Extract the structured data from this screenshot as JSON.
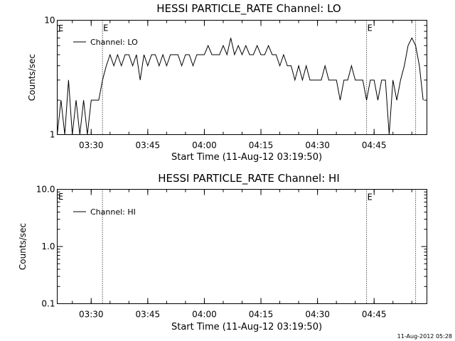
{
  "chart_data": [
    {
      "type": "line",
      "title": "HESSI PARTICLE_RATE Channel: LO",
      "xlabel": "Start Time (11-Aug-12 03:19:50)",
      "ylabel": "Counts/sec",
      "yscale": "log",
      "ylim": [
        1,
        10
      ],
      "xlim": [
        "03:21",
        "04:59"
      ],
      "x_ticks": [
        "03:30",
        "03:45",
        "04:00",
        "04:15",
        "04:30",
        "04:45"
      ],
      "y_ticks": [
        "1",
        "10"
      ],
      "legend_position": "top-left",
      "grid": false,
      "series": [
        {
          "name": "Channel: LO",
          "x": [
            "03:21",
            "03:22",
            "03:23",
            "03:24",
            "03:25",
            "03:26",
            "03:27",
            "03:28",
            "03:29",
            "03:30",
            "03:31",
            "03:32",
            "03:33",
            "03:34",
            "03:35",
            "03:36",
            "03:37",
            "03:38",
            "03:39",
            "03:40",
            "03:41",
            "03:42",
            "03:43",
            "03:44",
            "03:45",
            "03:46",
            "03:47",
            "03:48",
            "03:49",
            "03:50",
            "03:51",
            "03:52",
            "03:53",
            "03:54",
            "03:55",
            "03:56",
            "03:57",
            "03:58",
            "03:59",
            "04:00",
            "04:01",
            "04:02",
            "04:03",
            "04:04",
            "04:05",
            "04:06",
            "04:07",
            "04:08",
            "04:09",
            "04:10",
            "04:11",
            "04:12",
            "04:13",
            "04:14",
            "04:15",
            "04:16",
            "04:17",
            "04:18",
            "04:19",
            "04:20",
            "04:21",
            "04:22",
            "04:23",
            "04:24",
            "04:25",
            "04:26",
            "04:27",
            "04:28",
            "04:29",
            "04:30",
            "04:31",
            "04:32",
            "04:33",
            "04:34",
            "04:35",
            "04:36",
            "04:37",
            "04:38",
            "04:39",
            "04:40",
            "04:41",
            "04:42",
            "04:43",
            "04:44",
            "04:45",
            "04:46",
            "04:47",
            "04:48",
            "04:49",
            "04:50",
            "04:51",
            "04:52",
            "04:53",
            "04:54",
            "04:55",
            "04:56",
            "04:57",
            "04:58"
          ],
          "values": [
            1,
            2,
            1,
            3,
            1,
            2,
            1,
            2,
            1,
            2,
            2,
            2,
            3,
            4,
            5,
            4,
            5,
            4,
            5,
            5,
            4,
            5,
            3,
            5,
            4,
            5,
            5,
            4,
            5,
            4,
            5,
            5,
            5,
            4,
            5,
            5,
            4,
            5,
            5,
            5,
            6,
            5,
            5,
            5,
            6,
            5,
            7,
            5,
            6,
            5,
            6,
            5,
            5,
            6,
            5,
            5,
            6,
            5,
            5,
            4,
            5,
            4,
            4,
            3,
            4,
            3,
            4,
            3,
            3,
            3,
            3,
            4,
            3,
            3,
            3,
            2,
            3,
            3,
            4,
            3,
            3,
            3,
            2,
            3,
            3,
            2,
            3,
            3,
            1,
            3,
            2,
            3,
            4,
            6,
            7,
            6,
            4,
            2
          ]
        }
      ],
      "markers": [
        {
          "time": "03:33",
          "label": "E"
        },
        {
          "time": "04:43",
          "label": "E"
        },
        {
          "time": "04:56",
          "label": ""
        }
      ]
    },
    {
      "type": "line",
      "title": "HESSI PARTICLE_RATE Channel: HI",
      "xlabel": "Start Time (11-Aug-12 03:19:50)",
      "ylabel": "Counts/sec",
      "yscale": "log",
      "ylim": [
        0.1,
        10
      ],
      "xlim": [
        "03:21",
        "04:59"
      ],
      "x_ticks": [
        "03:30",
        "03:45",
        "04:00",
        "04:15",
        "04:30",
        "04:45"
      ],
      "y_ticks": [
        "0.1",
        "1.0",
        "10.0"
      ],
      "legend_position": "top-left",
      "grid": false,
      "series": [
        {
          "name": "Channel: HI",
          "x": [],
          "values": []
        }
      ],
      "markers": [
        {
          "time": "03:33",
          "label": ""
        },
        {
          "time": "04:43",
          "label": "E"
        },
        {
          "time": "04:56",
          "label": ""
        }
      ]
    }
  ],
  "footer_stamp": "11-Aug-2012 05:28",
  "plot_letter": "E"
}
